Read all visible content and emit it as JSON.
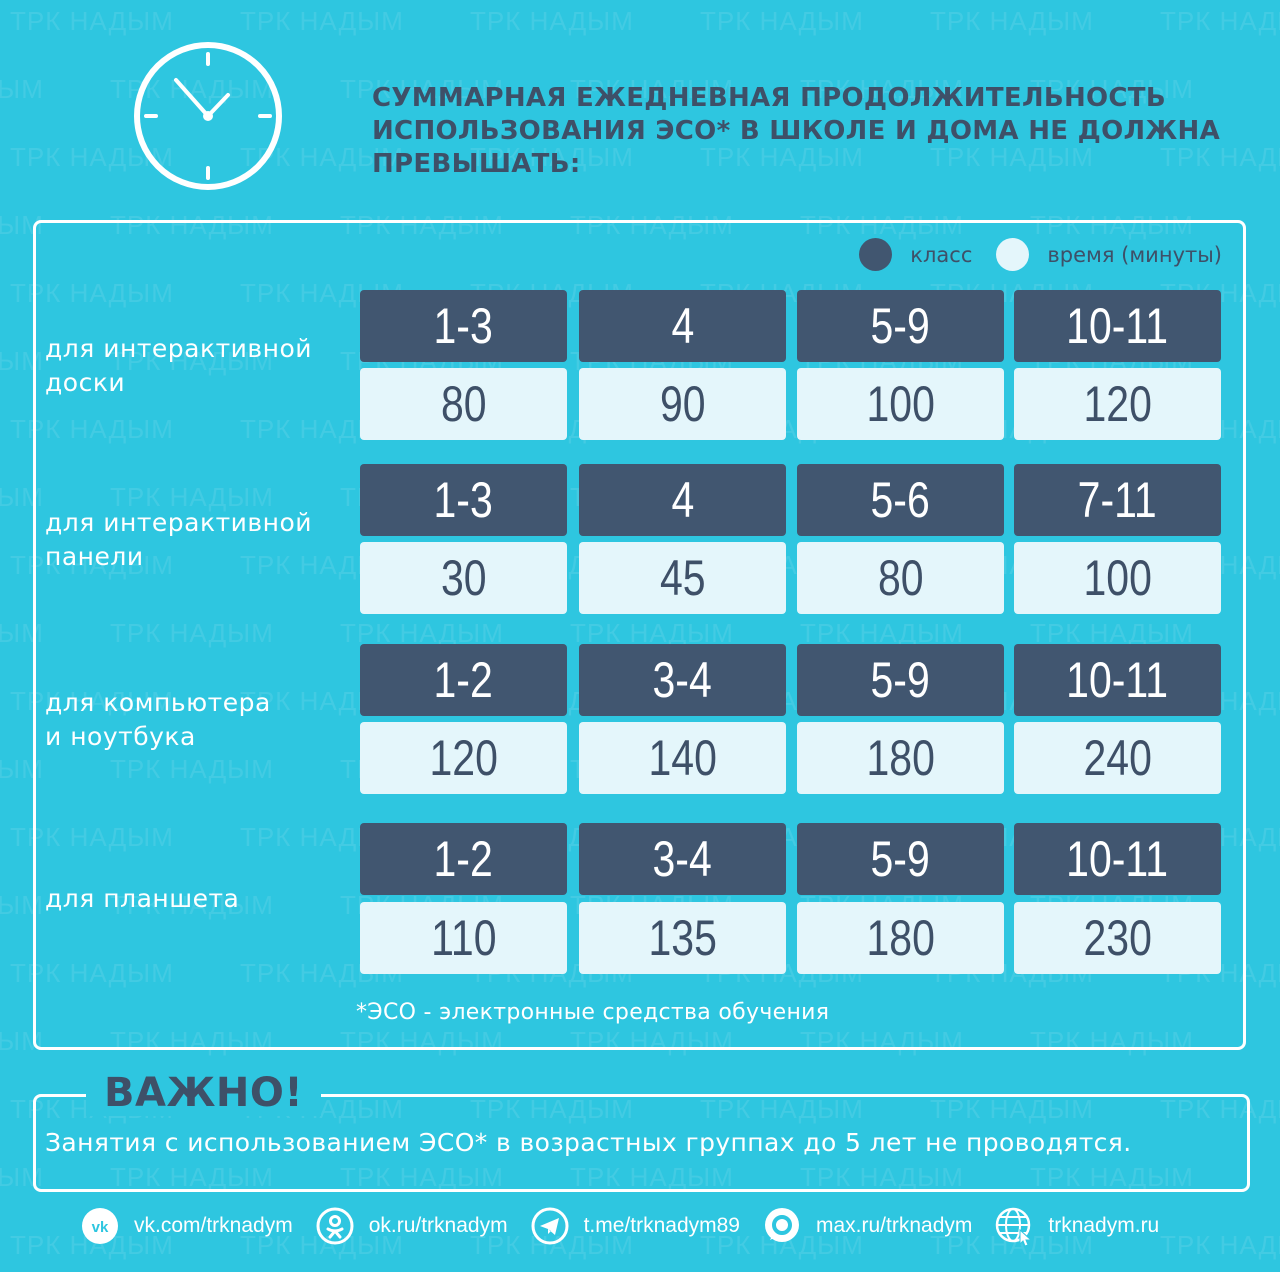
{
  "watermark": "ТРК НАДЫМ",
  "header": {
    "title": "СУММАРНАЯ ЕЖЕДНЕВНАЯ ПРОДОЛЖИТЕЛЬНОСТЬ ИСПОЛЬЗОВАНИЯ ЭСО* В ШКОЛЕ И ДОМА НЕ ДОЛЖНА ПРЕВЫШАТЬ:",
    "icon": "clock-icon"
  },
  "legend": {
    "grade_label": "класс",
    "time_label": "время (минуты)"
  },
  "rows": [
    {
      "label_line1": "для интерактивной",
      "label_line2": "доски",
      "grades": [
        "1-3",
        "4",
        "5-9",
        "10-11"
      ],
      "times": [
        "80",
        "90",
        "100",
        "120"
      ]
    },
    {
      "label_line1": "для интерактивной",
      "label_line2": "панели",
      "grades": [
        "1-3",
        "4",
        "5-6",
        "7-11"
      ],
      "times": [
        "30",
        "45",
        "80",
        "100"
      ]
    },
    {
      "label_line1": "для компьютера",
      "label_line2": "и ноутбука",
      "grades": [
        "1-2",
        "3-4",
        "5-9",
        "10-11"
      ],
      "times": [
        "120",
        "140",
        "180",
        "240"
      ]
    },
    {
      "label_line1": "для планшета",
      "label_line2": "",
      "grades": [
        "1-2",
        "3-4",
        "5-9",
        "10-11"
      ],
      "times": [
        "110",
        "135",
        "180",
        "230"
      ]
    }
  ],
  "footnote": "*ЭСО - электронные средства обучения",
  "important": {
    "title": "ВАЖНО!",
    "text": "Занятия с использованием ЭСО* в возрастных группах до 5 лет не проводятся."
  },
  "socials": [
    {
      "icon": "vk-icon",
      "text": "vk.com/trknadym"
    },
    {
      "icon": "ok-icon",
      "text": "ok.ru/trknadym"
    },
    {
      "icon": "telegram-icon",
      "text": "t.me/trknadym89"
    },
    {
      "icon": "max-icon",
      "text": "max.ru/trknadym"
    },
    {
      "icon": "globe-icon",
      "text": "trknadym.ru"
    }
  ],
  "colors": {
    "background": "#2ec6e0",
    "grade_cell": "#415670",
    "time_cell": "#e4f6fb",
    "title_text": "#3e5068"
  }
}
